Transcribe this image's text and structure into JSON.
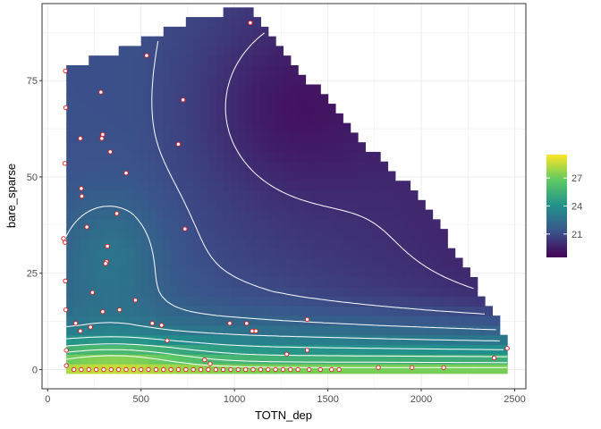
{
  "chart_data": {
    "type": "heatmap",
    "title": "",
    "xlabel": "TOTN_dep",
    "ylabel": "bare_sparse",
    "xlim": [
      -30,
      2560
    ],
    "ylim": [
      -5,
      95
    ],
    "xticks": [
      0,
      500,
      1000,
      1500,
      2000,
      2500
    ],
    "yticks": [
      0,
      25,
      50,
      75
    ],
    "grid": true,
    "legend": {
      "position": "right",
      "ticks": [
        21,
        24,
        27
      ],
      "range": [
        18.5,
        29.5
      ]
    },
    "max_y_by_x": [
      [
        100,
        78
      ],
      [
        200,
        79
      ],
      [
        300,
        80
      ],
      [
        400,
        82
      ],
      [
        500,
        84
      ],
      [
        600,
        86
      ],
      [
        700,
        88
      ],
      [
        800,
        90
      ],
      [
        900,
        91
      ],
      [
        1000,
        92
      ],
      [
        1050,
        93
      ],
      [
        1100,
        93
      ],
      [
        1150,
        89
      ],
      [
        1200,
        86
      ],
      [
        1300,
        80
      ],
      [
        1400,
        74
      ],
      [
        1500,
        68
      ],
      [
        1600,
        62
      ],
      [
        1700,
        57
      ],
      [
        1800,
        53
      ],
      [
        1900,
        48
      ],
      [
        2000,
        42
      ],
      [
        2100,
        36
      ],
      [
        2200,
        28
      ],
      [
        2300,
        20
      ],
      [
        2400,
        12
      ],
      [
        2460,
        5
      ]
    ],
    "points": [
      [
        95,
        77.5
      ],
      [
        97,
        68
      ],
      [
        92,
        53.5
      ],
      [
        85,
        34
      ],
      [
        93,
        33
      ],
      [
        95,
        23
      ],
      [
        97,
        15.5
      ],
      [
        100,
        5
      ],
      [
        100,
        1
      ],
      [
        175,
        60
      ],
      [
        180,
        47
      ],
      [
        183,
        45
      ],
      [
        210,
        37
      ],
      [
        230,
        11
      ],
      [
        240,
        20
      ],
      [
        175,
        10
      ],
      [
        150,
        12
      ],
      [
        285,
        72
      ],
      [
        295,
        61
      ],
      [
        290,
        60
      ],
      [
        335,
        56.5
      ],
      [
        320,
        32
      ],
      [
        315,
        28
      ],
      [
        310,
        27.5
      ],
      [
        295,
        15
      ],
      [
        370,
        40.5
      ],
      [
        385,
        15.5
      ],
      [
        420,
        51
      ],
      [
        530,
        81.5
      ],
      [
        470,
        18
      ],
      [
        560,
        12
      ],
      [
        610,
        11.5
      ],
      [
        640,
        7.5
      ],
      [
        700,
        58.5
      ],
      [
        725,
        70
      ],
      [
        735,
        36.5
      ],
      [
        840,
        2.5
      ],
      [
        870,
        1.5
      ],
      [
        975,
        12
      ],
      [
        1065,
        12
      ],
      [
        1095,
        10
      ],
      [
        1115,
        10
      ],
      [
        1085,
        90
      ],
      [
        1280,
        4
      ],
      [
        1390,
        13
      ],
      [
        1390,
        5
      ],
      [
        1770,
        0.5
      ],
      [
        1950,
        0.5
      ],
      [
        2120,
        0.5
      ],
      [
        2390,
        3
      ],
      [
        2460,
        5.5
      ],
      [
        140,
        0
      ],
      [
        180,
        0
      ],
      [
        220,
        0
      ],
      [
        260,
        0
      ],
      [
        300,
        0
      ],
      [
        340,
        0
      ],
      [
        380,
        0
      ],
      [
        420,
        0
      ],
      [
        460,
        0
      ],
      [
        500,
        0
      ],
      [
        540,
        0
      ],
      [
        580,
        0
      ],
      [
        620,
        0
      ],
      [
        660,
        0
      ],
      [
        700,
        0
      ],
      [
        740,
        0
      ],
      [
        780,
        0
      ],
      [
        820,
        0
      ],
      [
        860,
        0
      ],
      [
        900,
        0
      ],
      [
        940,
        0
      ],
      [
        980,
        0
      ],
      [
        1020,
        0
      ],
      [
        1060,
        0
      ],
      [
        1100,
        0
      ],
      [
        1140,
        0
      ],
      [
        1180,
        0
      ],
      [
        1220,
        0
      ],
      [
        1260,
        0
      ],
      [
        1300,
        0
      ],
      [
        1340,
        0
      ],
      [
        1400,
        0
      ],
      [
        1460,
        0
      ],
      [
        1520,
        0
      ],
      [
        1560,
        0
      ]
    ]
  }
}
